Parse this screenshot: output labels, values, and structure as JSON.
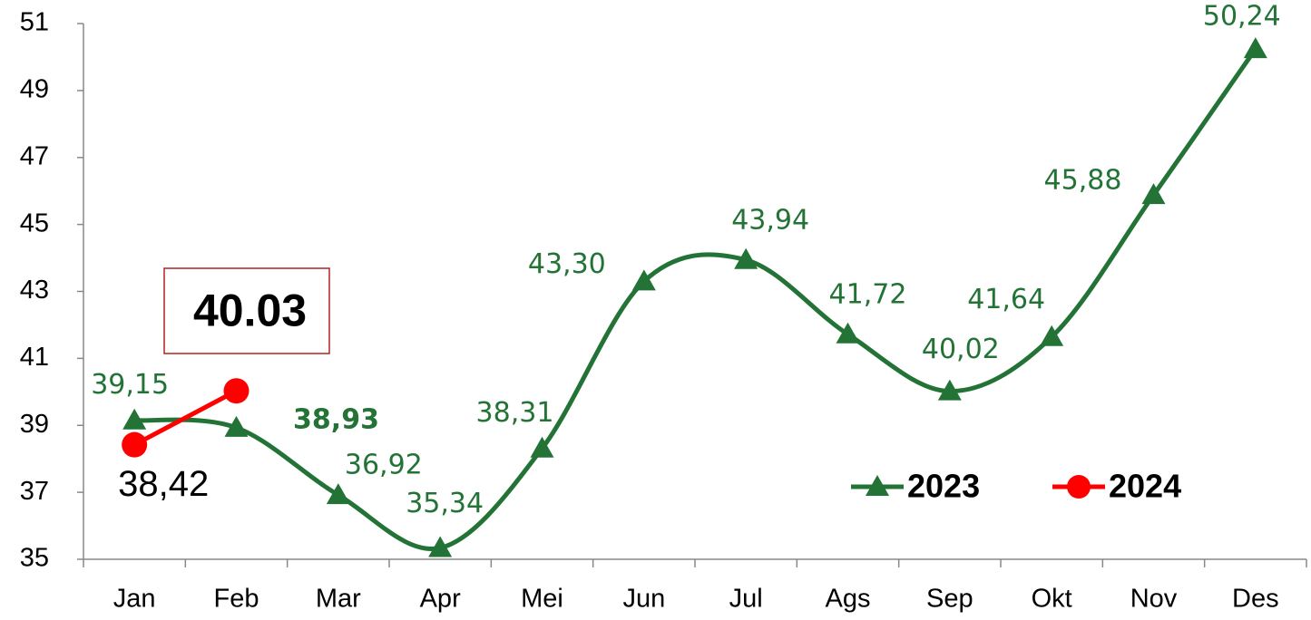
{
  "chart_data": {
    "type": "line",
    "categories": [
      "Jan",
      "Feb",
      "Mar",
      "Apr",
      "Mei",
      "Jun",
      "Jul",
      "Ags",
      "Sep",
      "Okt",
      "Nov",
      "Des"
    ],
    "series": [
      {
        "name": "2023",
        "color": "#237336",
        "values": [
          39.15,
          38.93,
          36.92,
          35.34,
          38.31,
          43.3,
          43.94,
          41.72,
          40.02,
          41.64,
          45.88,
          50.24
        ],
        "value_labels": [
          "39,15",
          "38,93",
          "36,92",
          "35,34",
          "38,31",
          "43,30",
          "43,94",
          "41,72",
          "40,02",
          "41,64",
          "45,88",
          "50,24"
        ]
      },
      {
        "name": "2024",
        "color": "#ff0000",
        "values": [
          38.42,
          40.03,
          null,
          null,
          null,
          null,
          null,
          null,
          null,
          null,
          null,
          null
        ],
        "value_labels": [
          "38,42",
          "40.03",
          null,
          null,
          null,
          null,
          null,
          null,
          null,
          null,
          null,
          null
        ]
      }
    ],
    "ylim": [
      35,
      51
    ],
    "yticks": [
      35,
      37,
      39,
      41,
      43,
      45,
      47,
      49,
      51
    ]
  }
}
